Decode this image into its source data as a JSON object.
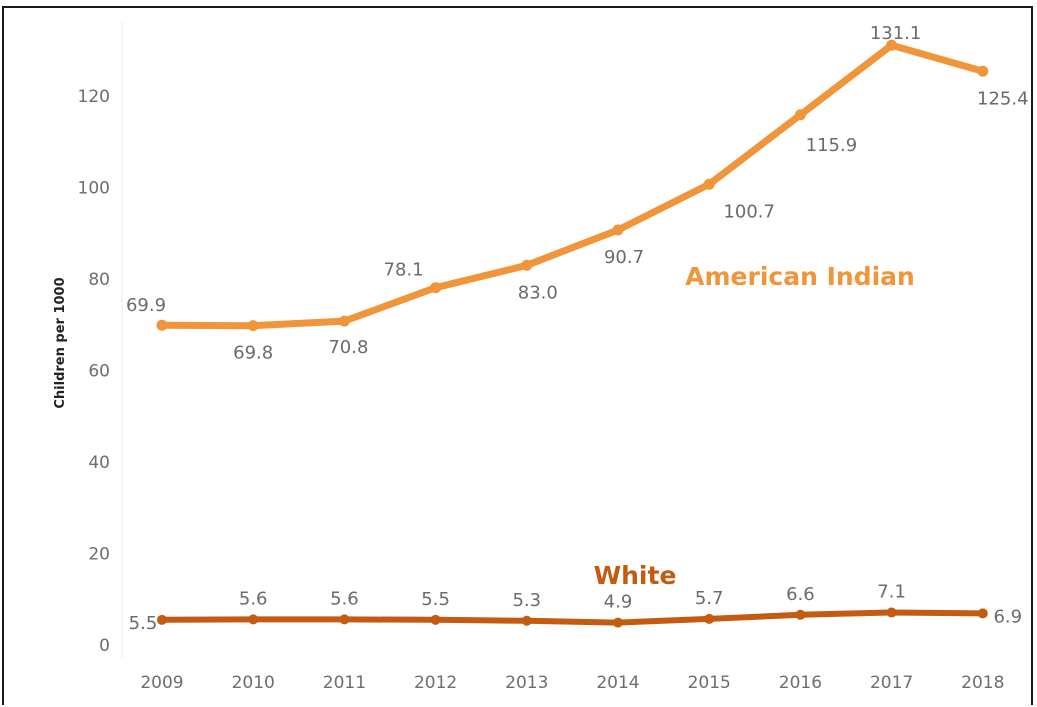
{
  "chart_data": {
    "type": "line",
    "title": "",
    "xlabel": "",
    "ylabel": "Children per 1000",
    "x": [
      "2009",
      "2010",
      "2011",
      "2012",
      "2013",
      "2014",
      "2015",
      "2016",
      "2017",
      "2018"
    ],
    "ylim": [
      0,
      140
    ],
    "yticks": [
      0,
      20,
      40,
      60,
      80,
      100,
      120
    ],
    "grid": false,
    "series": [
      {
        "name": "American Indian",
        "color": "#f0953a",
        "values": [
          69.9,
          69.8,
          70.8,
          78.1,
          83.0,
          90.7,
          100.7,
          115.9,
          131.1,
          125.4
        ],
        "labels": [
          "69.9",
          "69.8",
          "70.8",
          "78.1",
          "83.0",
          "90.7",
          "100.7",
          "115.9",
          "131.1",
          "125.4"
        ]
      },
      {
        "name": "White",
        "color": "#c55a11",
        "values": [
          5.5,
          5.6,
          5.6,
          5.5,
          5.3,
          4.9,
          5.7,
          6.6,
          7.1,
          6.9
        ],
        "labels": [
          "5.5",
          "5.6",
          "5.6",
          "5.5",
          "5.3",
          "4.9",
          "5.7",
          "6.6",
          "7.1",
          "6.9"
        ]
      }
    ]
  }
}
